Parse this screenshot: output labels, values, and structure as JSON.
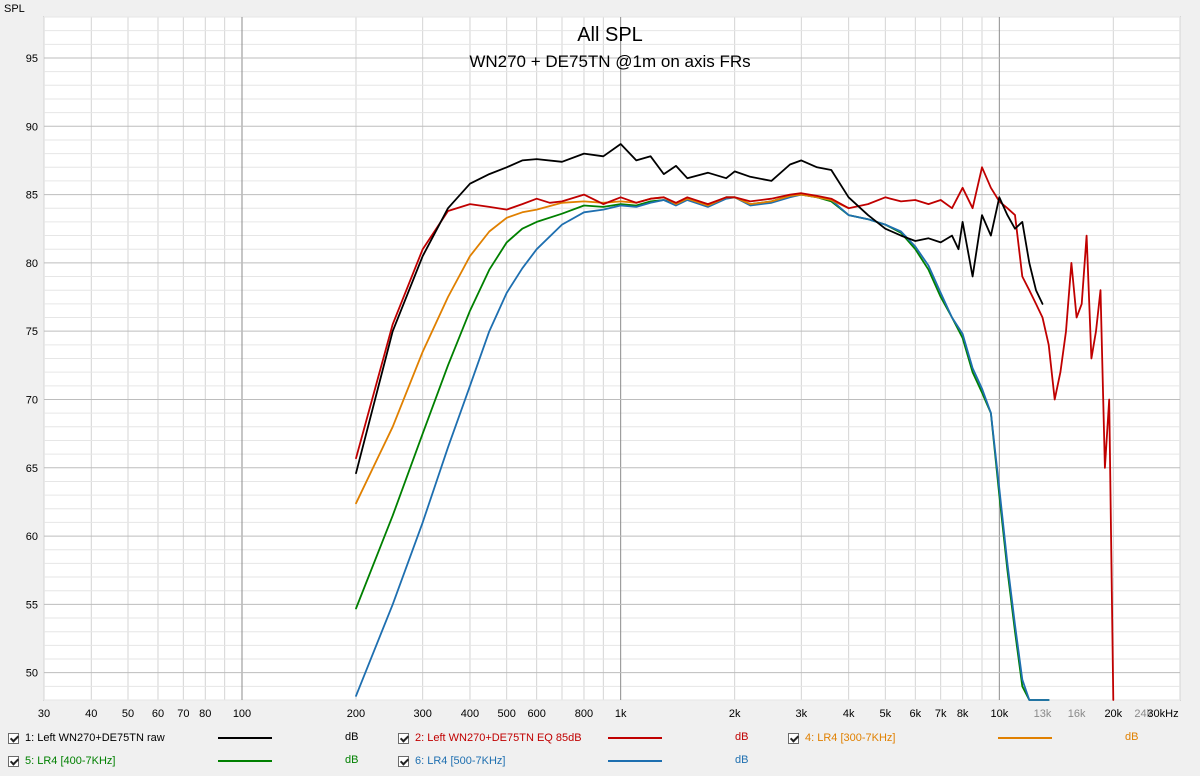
{
  "chart_data": {
    "type": "line",
    "title": "All SPL",
    "subtitle": "WN270 + DE75TN @1m on axis FRs",
    "ylabel": "SPL",
    "xlabel": "",
    "x_scale": "log",
    "xlim": [
      30,
      30000
    ],
    "ylim": [
      48,
      98
    ],
    "grid": true,
    "legend_placement": "bottom",
    "x_ticks": [
      {
        "v": 30,
        "t": "30"
      },
      {
        "v": 40,
        "t": "40"
      },
      {
        "v": 50,
        "t": "50"
      },
      {
        "v": 60,
        "t": "60"
      },
      {
        "v": 70,
        "t": "70"
      },
      {
        "v": 80,
        "t": "80"
      },
      {
        "v": 100,
        "t": "100"
      },
      {
        "v": 200,
        "t": "200"
      },
      {
        "v": 300,
        "t": "300"
      },
      {
        "v": 400,
        "t": "400"
      },
      {
        "v": 500,
        "t": "500"
      },
      {
        "v": 600,
        "t": "600"
      },
      {
        "v": 800,
        "t": "800"
      },
      {
        "v": 1000,
        "t": "1k"
      },
      {
        "v": 2000,
        "t": "2k"
      },
      {
        "v": 3000,
        "t": "3k"
      },
      {
        "v": 4000,
        "t": "4k"
      },
      {
        "v": 5000,
        "t": "5k"
      },
      {
        "v": 6000,
        "t": "6k"
      },
      {
        "v": 7000,
        "t": "7k"
      },
      {
        "v": 8000,
        "t": "8k"
      },
      {
        "v": 10000,
        "t": "10k"
      },
      {
        "v": 13000,
        "t": "13k",
        "muted": true
      },
      {
        "v": 16000,
        "t": "16k",
        "muted": true
      },
      {
        "v": 20000,
        "t": "20k"
      },
      {
        "v": 24000,
        "t": "24k",
        "muted": true
      },
      {
        "v": 30000,
        "t": "30kHz"
      }
    ],
    "y_ticks": [
      50,
      55,
      60,
      65,
      70,
      75,
      80,
      85,
      90,
      95
    ],
    "series": [
      {
        "name": "1: Left WN270+DE75TN raw",
        "unit": "dB",
        "color": "#000000",
        "x": [
          200,
          250,
          300,
          350,
          400,
          450,
          500,
          550,
          600,
          700,
          800,
          900,
          1000,
          1100,
          1200,
          1300,
          1400,
          1500,
          1700,
          1900,
          2000,
          2200,
          2500,
          2800,
          3000,
          3300,
          3600,
          4000,
          4500,
          5000,
          5500,
          6000,
          6500,
          7000,
          7500,
          7800,
          8000,
          8500,
          9000,
          9500,
          10000,
          10500,
          11000,
          11500,
          12000,
          12500,
          13000
        ],
        "y": [
          64.6,
          75.0,
          80.5,
          84.0,
          85.8,
          86.5,
          87.0,
          87.5,
          87.6,
          87.4,
          88.0,
          87.8,
          88.7,
          87.5,
          87.8,
          86.5,
          87.1,
          86.2,
          86.6,
          86.2,
          86.7,
          86.3,
          86.0,
          87.2,
          87.5,
          87.0,
          86.8,
          84.8,
          83.5,
          82.5,
          82.0,
          81.6,
          81.8,
          81.5,
          82.0,
          81.0,
          83.0,
          79.0,
          83.5,
          82.0,
          84.8,
          83.5,
          82.5,
          83.0,
          80.0,
          78.0,
          77.0
        ]
      },
      {
        "name": "2: Left WN270+DE75TN EQ 85dB",
        "unit": "dB",
        "color": "#c00000",
        "x": [
          200,
          250,
          300,
          350,
          400,
          450,
          500,
          550,
          600,
          650,
          700,
          800,
          900,
          1000,
          1100,
          1200,
          1300,
          1400,
          1500,
          1700,
          1900,
          2000,
          2200,
          2500,
          2800,
          3000,
          3300,
          3600,
          4000,
          4500,
          5000,
          5500,
          6000,
          6500,
          7000,
          7500,
          8000,
          8500,
          9000,
          9500,
          10000,
          10500,
          11000,
          11500,
          12000,
          12500,
          13000,
          13500,
          14000,
          14500,
          15000,
          15500,
          16000,
          16500,
          17000,
          17500,
          18000,
          18500,
          19000,
          19500,
          20000
        ],
        "y": [
          65.7,
          75.5,
          81.0,
          83.8,
          84.3,
          84.1,
          83.9,
          84.3,
          84.7,
          84.4,
          84.5,
          85.0,
          84.3,
          84.8,
          84.4,
          84.7,
          84.8,
          84.4,
          84.8,
          84.3,
          84.8,
          84.8,
          84.5,
          84.7,
          85.0,
          85.1,
          84.9,
          84.7,
          84.0,
          84.3,
          84.8,
          84.5,
          84.6,
          84.3,
          84.6,
          84.0,
          85.5,
          84.0,
          87.0,
          85.5,
          84.5,
          84.0,
          83.5,
          79.0,
          78.0,
          77.0,
          76.0,
          74.0,
          70.0,
          72.0,
          75.0,
          80.0,
          76.0,
          77.0,
          82.0,
          73.0,
          75.0,
          78.0,
          65.0,
          70.0,
          48.0
        ]
      },
      {
        "name": "4: LR4 [300-7KHz]",
        "unit": "dB",
        "color": "#e08000",
        "x": [
          200,
          250,
          300,
          350,
          400,
          450,
          500,
          550,
          600,
          700,
          800,
          900,
          1000,
          1100,
          1200,
          1300,
          1400,
          1500,
          1700,
          1900,
          2000,
          2200,
          2500,
          2800,
          3000,
          3300,
          3600,
          4000
        ],
        "y": [
          62.4,
          68.0,
          73.5,
          77.5,
          80.5,
          82.3,
          83.3,
          83.7,
          83.9,
          84.4,
          84.5,
          84.4,
          84.5,
          84.4,
          84.7,
          84.8,
          84.3,
          84.7,
          84.2,
          84.8,
          84.8,
          84.3,
          84.5,
          84.9,
          85.0,
          84.8,
          84.6,
          84.0
        ]
      },
      {
        "name": "5: LR4 [400-7KHz]",
        "unit": "dB",
        "color": "#008000",
        "x": [
          200,
          250,
          300,
          350,
          400,
          450,
          500,
          550,
          600,
          700,
          800,
          900,
          1000,
          1100,
          1200,
          1300,
          1400,
          1500,
          1700,
          1900,
          2000,
          2200,
          2500,
          2800,
          3000,
          3300,
          3600,
          4000,
          4500,
          5000,
          5500,
          6000,
          6500,
          7000,
          7500,
          8000,
          8500,
          9000,
          9500,
          10000,
          10500,
          11000,
          11500,
          12000,
          12500,
          13000,
          13500
        ],
        "y": [
          54.7,
          61.5,
          67.5,
          72.5,
          76.5,
          79.5,
          81.5,
          82.5,
          83.0,
          83.6,
          84.2,
          84.1,
          84.3,
          84.2,
          84.5,
          84.6,
          84.3,
          84.7,
          84.2,
          84.8,
          84.8,
          84.3,
          84.5,
          84.9,
          85.0,
          84.8,
          84.5,
          83.5,
          83.2,
          82.8,
          82.2,
          81.0,
          79.5,
          77.5,
          76.0,
          74.5,
          72.0,
          70.5,
          69.0,
          63.0,
          57.5,
          53.0,
          49.0,
          48.0,
          48.0,
          48.0,
          48.0
        ]
      },
      {
        "name": "6: LR4 [500-7KHz]",
        "unit": "dB",
        "color": "#1e6fb0",
        "x": [
          200,
          250,
          300,
          350,
          400,
          450,
          500,
          550,
          600,
          700,
          800,
          900,
          1000,
          1100,
          1200,
          1300,
          1400,
          1500,
          1700,
          1900,
          2000,
          2200,
          2500,
          2800,
          3000,
          3300,
          3600,
          4000,
          4500,
          5000,
          5500,
          6000,
          6500,
          7000,
          7500,
          8000,
          8500,
          9000,
          9500,
          10000,
          10500,
          11000,
          11500,
          12000,
          12500,
          13000,
          13500
        ],
        "y": [
          48.3,
          55.0,
          61.0,
          66.5,
          71.0,
          75.0,
          77.8,
          79.6,
          81.0,
          82.8,
          83.7,
          83.9,
          84.2,
          84.1,
          84.4,
          84.6,
          84.2,
          84.6,
          84.1,
          84.7,
          84.8,
          84.2,
          84.4,
          84.8,
          85.0,
          84.8,
          84.6,
          83.5,
          83.2,
          82.8,
          82.3,
          81.2,
          79.8,
          77.8,
          76.0,
          74.8,
          72.3,
          70.8,
          69.0,
          63.5,
          58.0,
          53.5,
          49.5,
          48.0,
          48.0,
          48.0,
          48.0
        ]
      }
    ]
  },
  "legend": [
    {
      "label": "1: Left WN270+DE75TN raw",
      "unit": "dB",
      "color": "#000000",
      "label_color": "#000000"
    },
    {
      "label": "2: Left WN270+DE75TN EQ 85dB",
      "unit": "dB",
      "color": "#c00000",
      "label_color": "#c00000"
    },
    {
      "label": "4: LR4 [300-7KHz]",
      "unit": "dB",
      "color": "#e08000",
      "label_color": "#e08000"
    },
    {
      "label": "5: LR4 [400-7KHz]",
      "unit": "dB",
      "color": "#008000",
      "label_color": "#008000"
    },
    {
      "label": "6: LR4 [500-7KHz]",
      "unit": "dB",
      "color": "#1e6fb0",
      "label_color": "#1e6fb0"
    }
  ]
}
